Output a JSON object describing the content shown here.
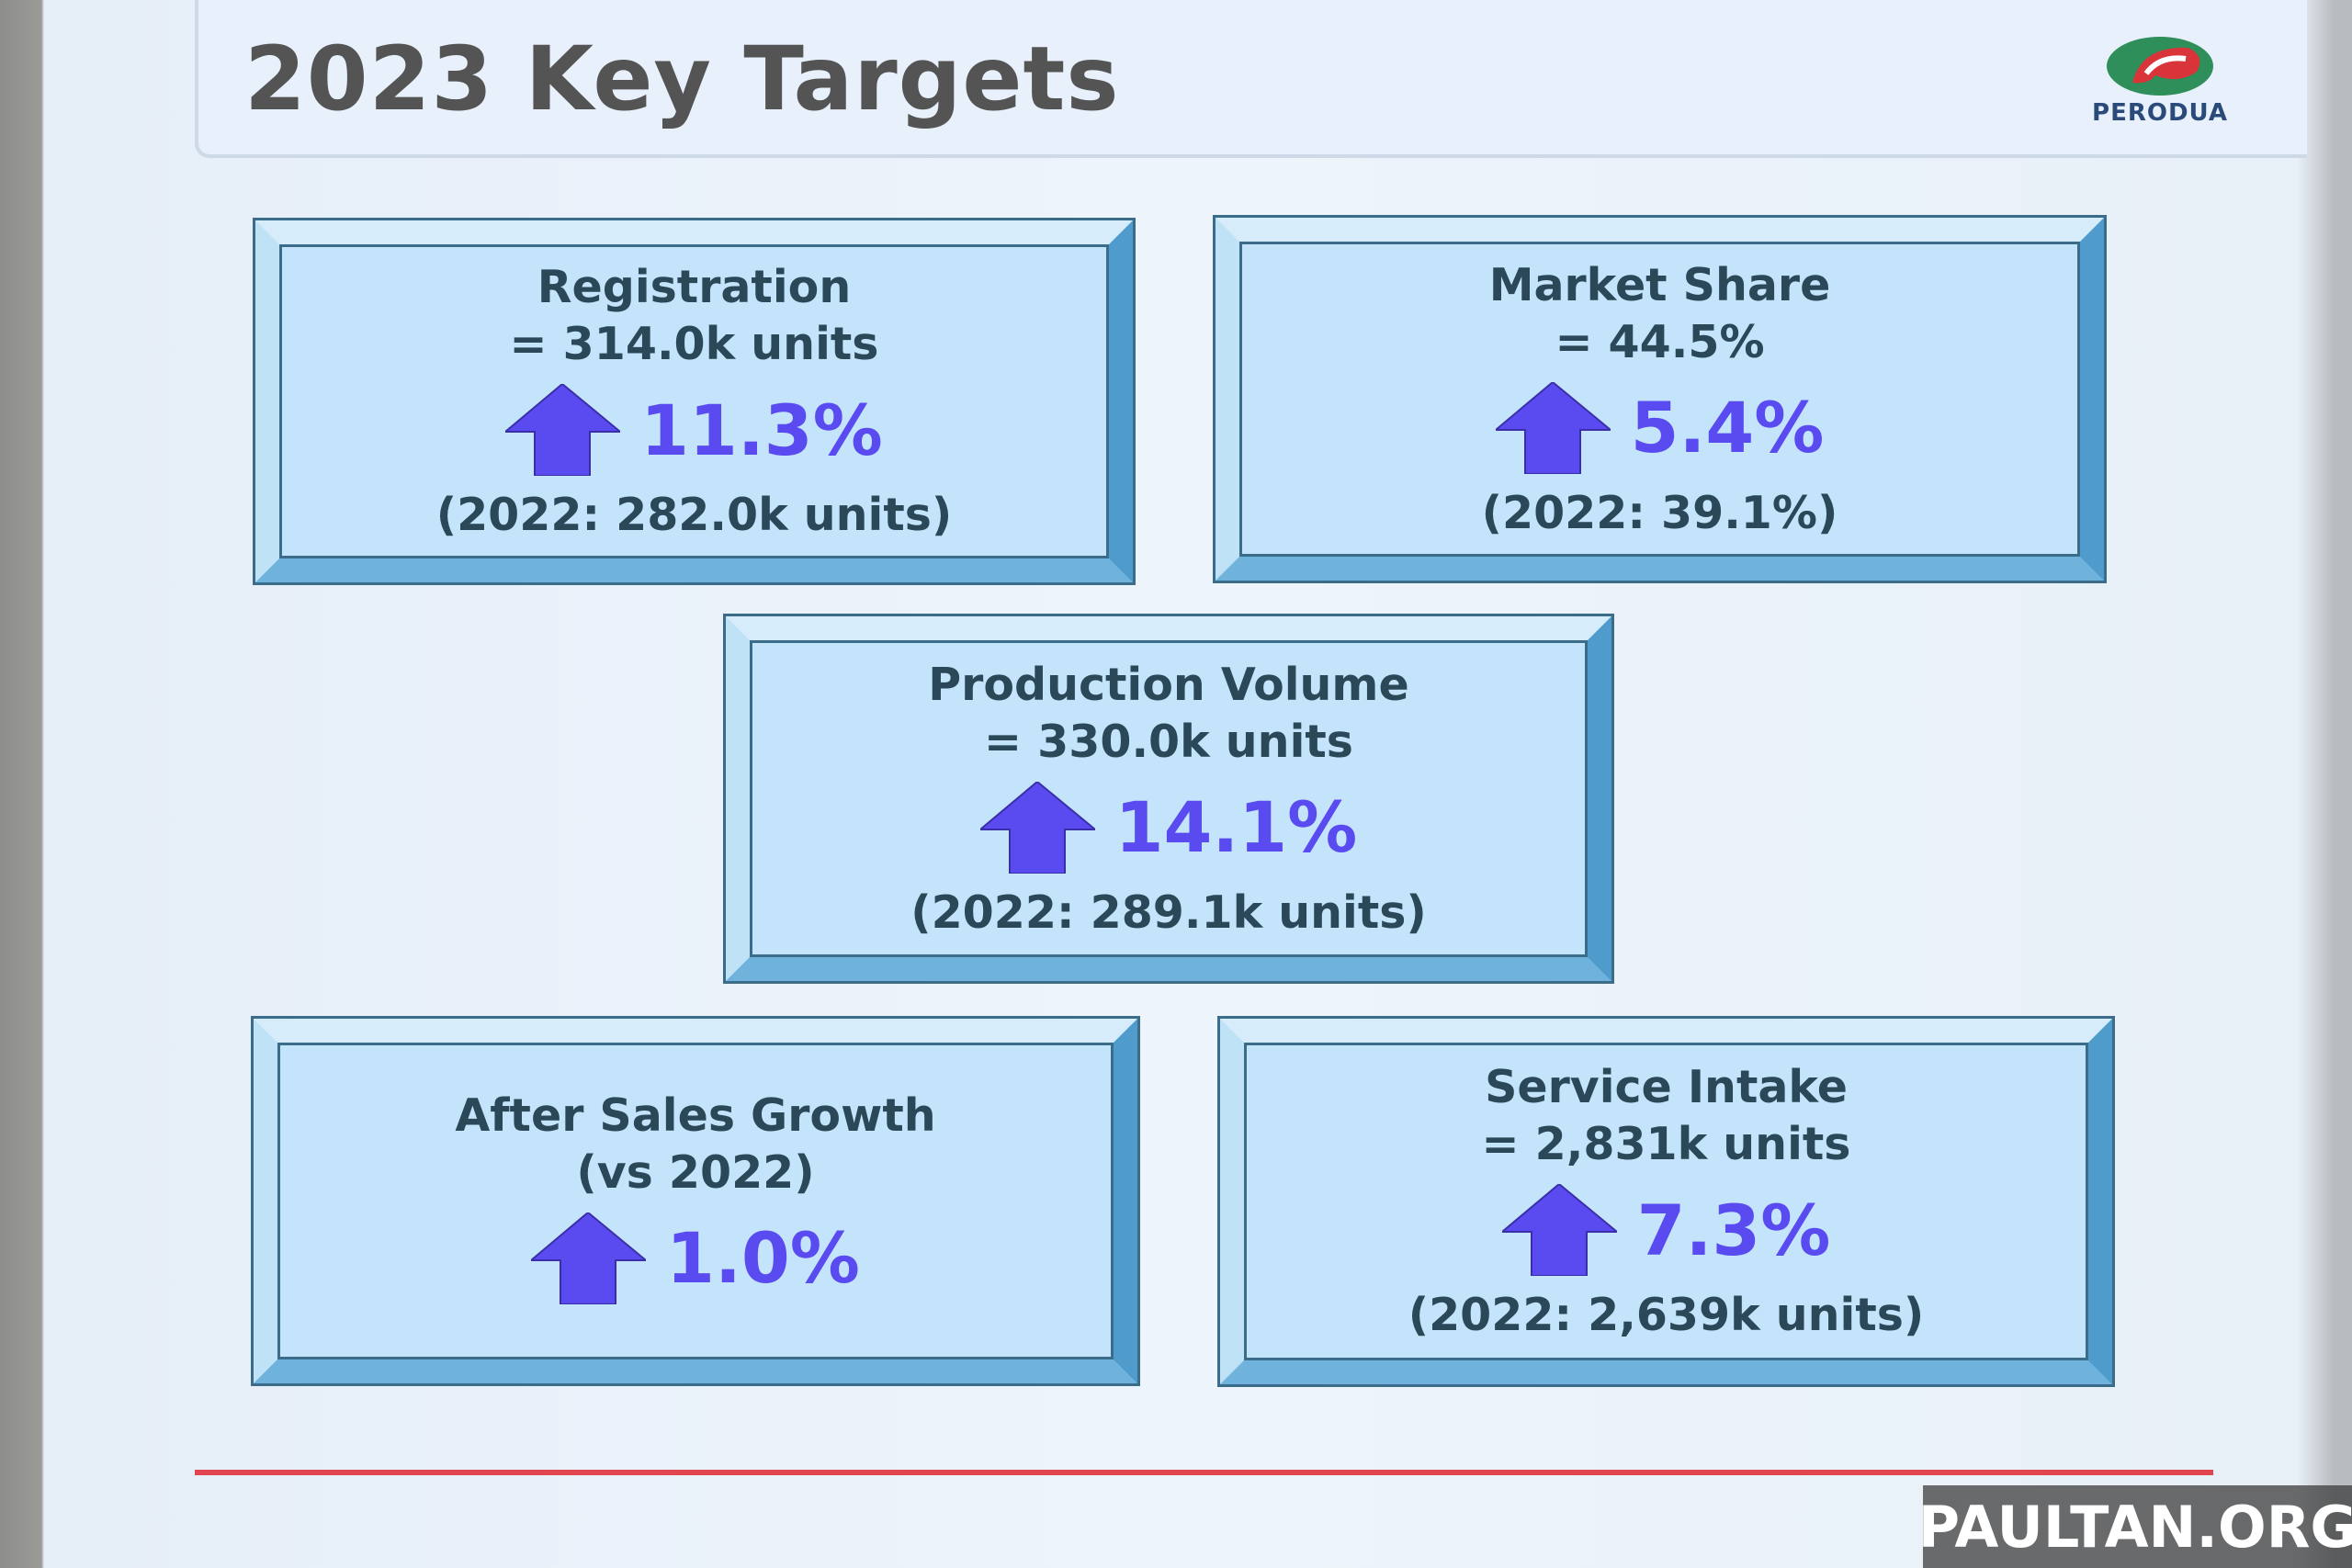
{
  "header": {
    "title": "2023 Key Targets",
    "logo": "PERODUA"
  },
  "cards": [
    {
      "title": "Registration",
      "value": "= 314.0k units",
      "change": "11.3%",
      "previous": "(2022: 282.0k units)"
    },
    {
      "title": "Market Share",
      "value": "= 44.5%",
      "change": "5.4%",
      "previous": "(2022: 39.1%)"
    },
    {
      "title": "Production Volume",
      "value": "=  330.0k units",
      "change": "14.1%",
      "previous": "(2022: 289.1k units)"
    },
    {
      "title": "After Sales Growth",
      "value": "(vs 2022)",
      "change": "1.0%"
    },
    {
      "title": "Service Intake",
      "value": "=  2,831k units",
      "change": "7.3%",
      "previous": "(2022: 2,639k units)"
    }
  ],
  "watermark": "PAULTAN.ORG"
}
